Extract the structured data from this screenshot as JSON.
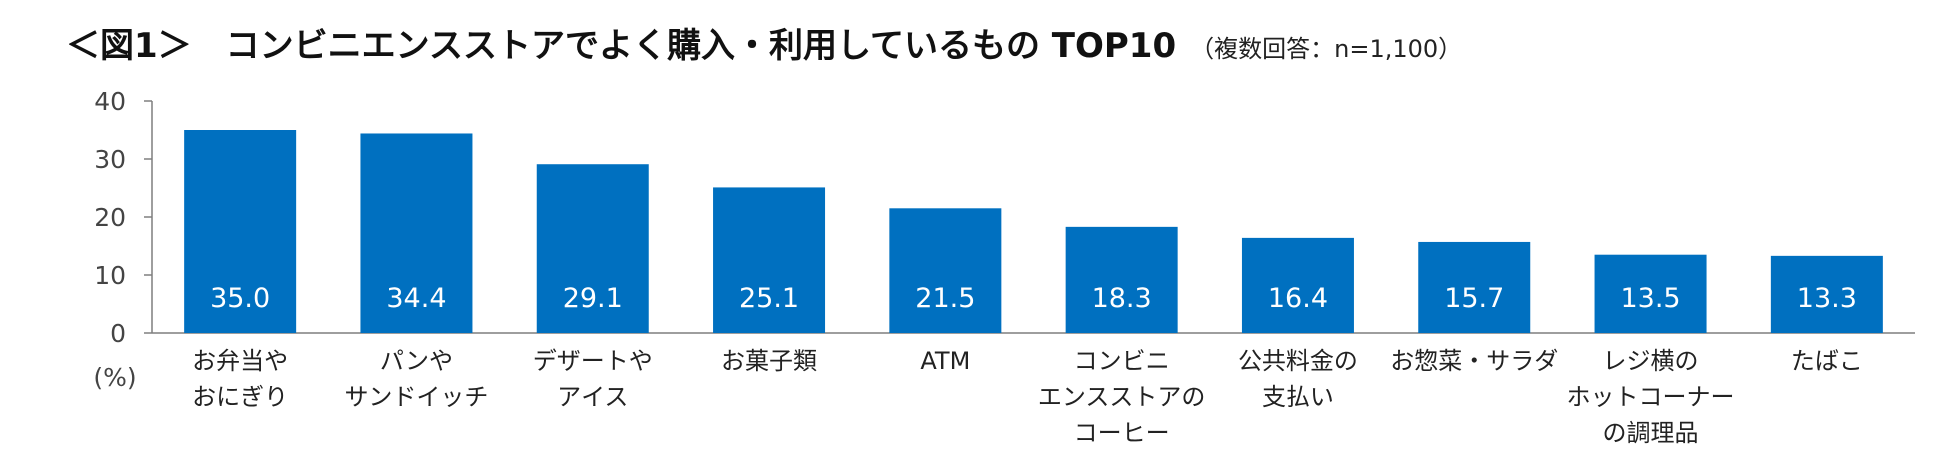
{
  "title": {
    "main": "＜図1＞　コンビニエンスストアでよく購入・利用しているもの TOP10",
    "sub": "（複数回答：n=1,100）"
  },
  "colors": {
    "bar": "#0070C0",
    "axis": "#7f7f7f",
    "value_label": "#ffffff"
  },
  "chart_data": {
    "type": "bar",
    "title": "＜図1＞　コンビニエンスストアでよく購入・利用しているもの TOP10",
    "subtitle": "（複数回答：n=1,100）",
    "ylabel": "(%)",
    "ylim": [
      0,
      40
    ],
    "yticks": [
      "0",
      "10",
      "20",
      "30",
      "40"
    ],
    "grid": false,
    "categories": [
      [
        "お弁当や",
        "おにぎり"
      ],
      [
        "パンや",
        "サンドイッチ"
      ],
      [
        "デザートや",
        "アイス"
      ],
      [
        "お菓子類"
      ],
      [
        "ATM"
      ],
      [
        "コンビニ",
        "エンスストアの",
        "コーヒー"
      ],
      [
        "公共料金の",
        "支払い"
      ],
      [
        "お惣菜・サラダ"
      ],
      [
        "レジ横の",
        "ホットコーナー",
        "の調理品"
      ],
      [
        "たばこ"
      ]
    ],
    "values": [
      35.0,
      34.4,
      29.1,
      25.1,
      21.5,
      18.3,
      16.4,
      15.7,
      13.5,
      13.3
    ],
    "value_labels": [
      "35.0",
      "34.4",
      "29.1",
      "25.1",
      "21.5",
      "18.3",
      "16.4",
      "15.7",
      "13.5",
      "13.3"
    ]
  }
}
